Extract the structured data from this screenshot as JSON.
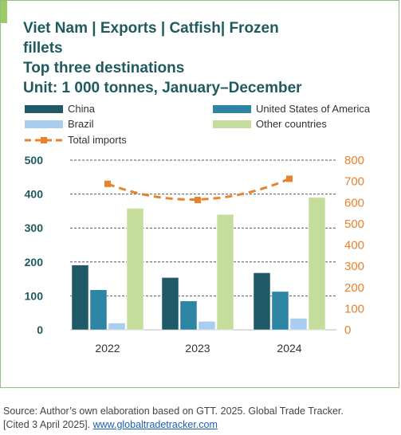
{
  "title": {
    "line1": "Viet Nam  |  Exports  |  Catfish|  Frozen",
    "line2": "fillets",
    "line3": "Top three destinations",
    "line4": "Unit: 1 000 tonnes, January–December"
  },
  "footer": {
    "source": "Source: Author’s own elaboration based on GTT. 2025. Global Trade Tracker.",
    "cited": "[Cited 3 April 2025]. ",
    "link": "www.globaltradetracker.com"
  },
  "colors": {
    "china": "#1f5866",
    "usa": "#2e84a3",
    "brazil": "#a8cdef",
    "other": "#c4dd9c",
    "total": "#e8822c",
    "title": "#1f5a5f"
  },
  "chart_data": {
    "type": "bar",
    "categories": [
      "2022",
      "2023",
      "2024"
    ],
    "series": [
      {
        "name": "China",
        "values": [
          191,
          154,
          168
        ],
        "axis": "left"
      },
      {
        "name": "United States of America",
        "values": [
          118,
          85,
          113
        ],
        "axis": "left"
      },
      {
        "name": "Brazil",
        "values": [
          20,
          25,
          34
        ],
        "axis": "left"
      },
      {
        "name": "Other countries",
        "values": [
          358,
          340,
          390
        ],
        "axis": "left"
      },
      {
        "name": "Total imports",
        "values": [
          688,
          612,
          712
        ],
        "axis": "right",
        "type": "line",
        "style": "dashed"
      }
    ],
    "ylim": [
      0,
      500
    ],
    "y2lim": [
      0,
      800
    ],
    "yticks": [
      "0",
      "100",
      "200",
      "300",
      "400",
      "500"
    ],
    "y2ticks": [
      "0",
      "100",
      "200",
      "300",
      "400",
      "500",
      "600",
      "700",
      "800"
    ],
    "grid": "horizontal dashed",
    "legend": "top"
  }
}
